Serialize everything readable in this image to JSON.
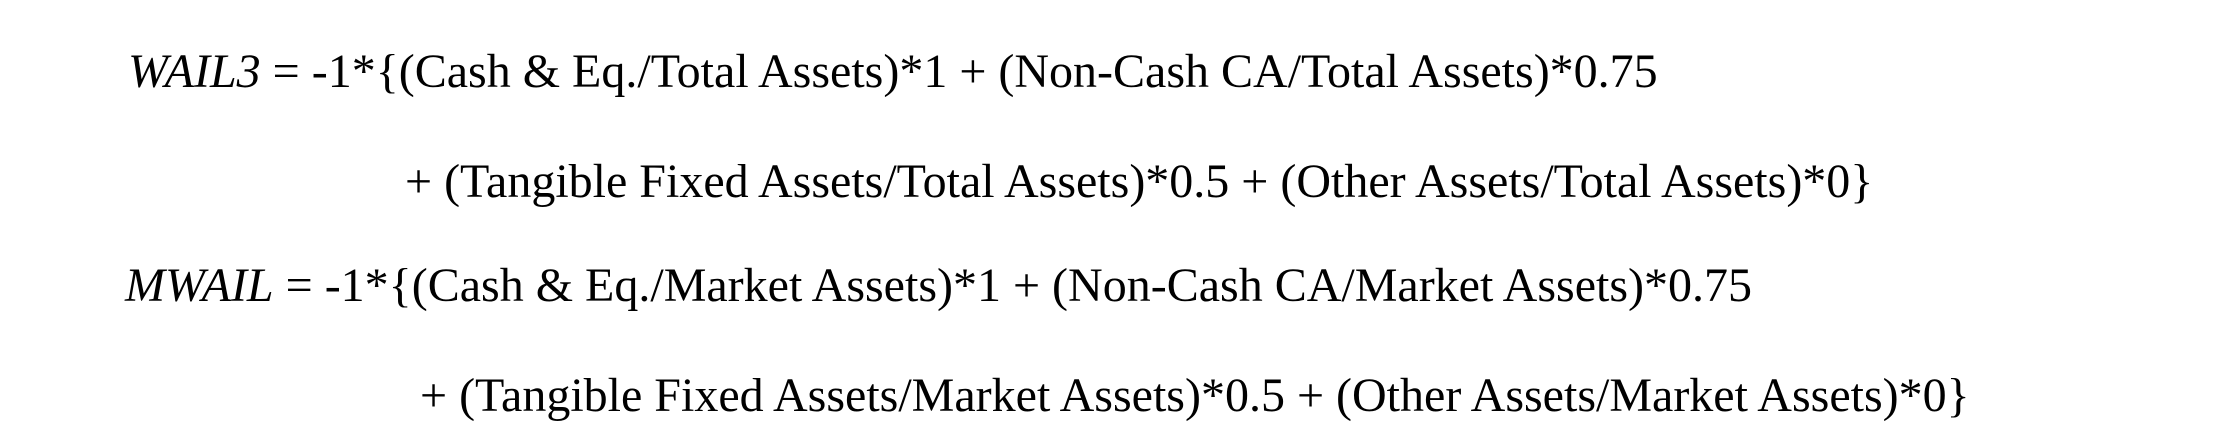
{
  "formulas": [
    {
      "lines": [
        {
          "var": "WAIL3",
          "text": " = -1*{(Cash & Eq./Total Assets)*1 + (Non-Cash CA/Total Assets)*0.75"
        },
        {
          "text": "+ (Tangible Fixed Assets/Total Assets)*0.5 + (Other Assets/Total Assets)*0}"
        }
      ]
    },
    {
      "lines": [
        {
          "var": "MWAIL",
          "text": " = -1*{(Cash & Eq./Market Assets)*1 + (Non-Cash CA/Market Assets)*0.75"
        },
        {
          "text": "+ (Tangible Fixed Assets/Market Assets)*0.5 + (Other Assets/Market Assets)*0}"
        }
      ]
    }
  ]
}
